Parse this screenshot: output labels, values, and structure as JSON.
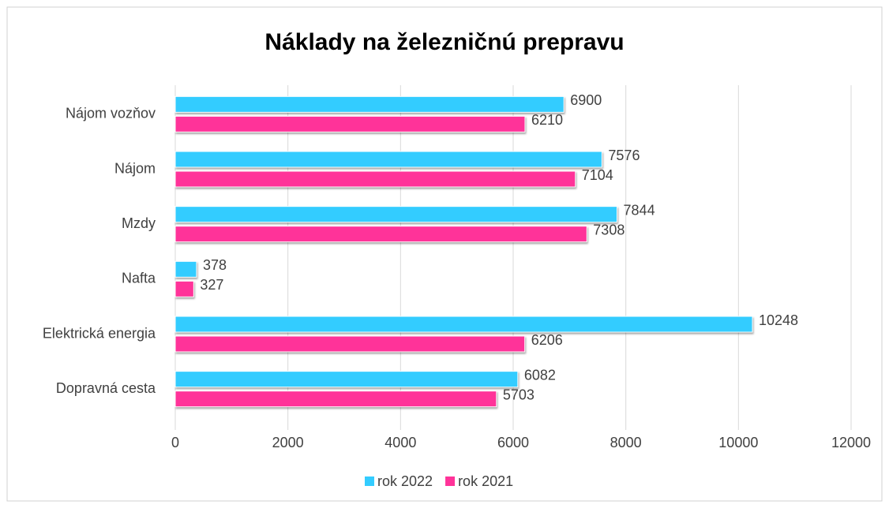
{
  "chart_data": {
    "type": "hbar",
    "title": "Náklady na železničnú prepravu",
    "categories": [
      "Nájom vozňov",
      "Nájom",
      "Mzdy",
      "Nafta",
      "Elektrická energia",
      "Dopravná cesta"
    ],
    "series": [
      {
        "name": "rok 2022",
        "color": "#33ccff",
        "values": [
          6900,
          7576,
          7844,
          378,
          10248,
          6082
        ]
      },
      {
        "name": "rok 2021",
        "color": "#ff3399",
        "values": [
          6210,
          7104,
          7308,
          327,
          6206,
          5703
        ]
      }
    ],
    "xlim": [
      0,
      12000
    ],
    "xticks": [
      0,
      2000,
      4000,
      6000,
      8000,
      10000,
      12000
    ],
    "grid": true,
    "legend": "bottom"
  }
}
